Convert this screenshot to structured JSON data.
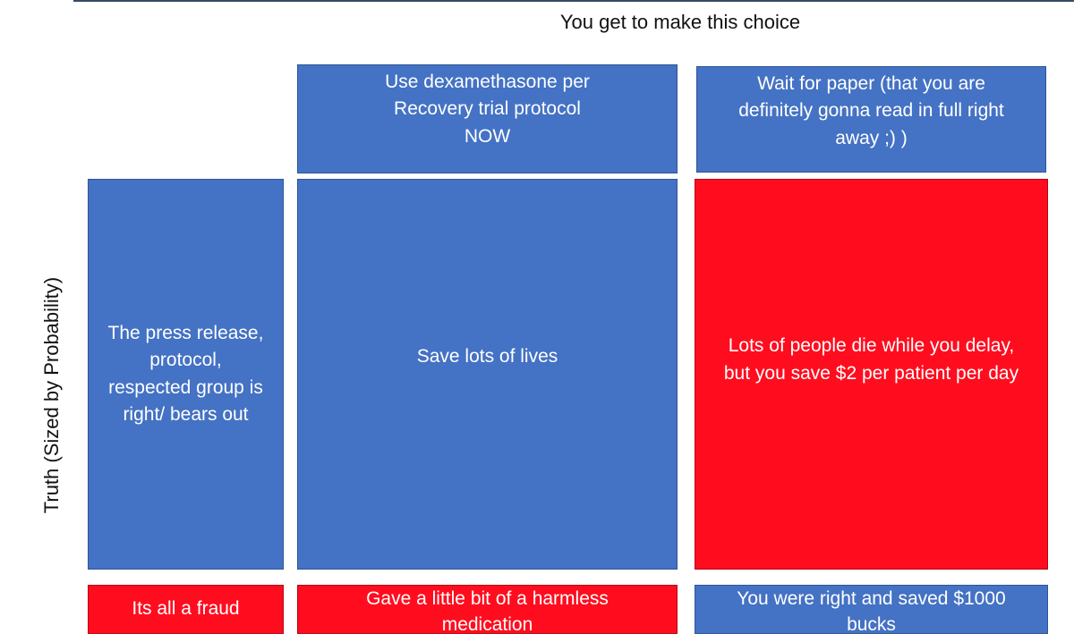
{
  "heading": "You get to make this choice",
  "axis_label": "Truth (Sized by Probability)",
  "choices": {
    "use_now": "Use dexamethasone per\nRecovery trial protocol\nNOW",
    "wait": "Wait for paper (that you are\ndefinitely gonna read in full right\naway ;) )"
  },
  "truths": {
    "right": "The press release,\nprotocol,\nrespected group is\nright/ bears out",
    "fraud": "Its all a fraud"
  },
  "outcomes": {
    "right_use_now": "Save lots of lives",
    "right_wait": "Lots of people die while you delay,\nbut you save $2 per patient per day",
    "fraud_use_now": "Gave a little bit of a harmless\nmedication",
    "fraud_wait": "You were right and saved $1000\nbucks"
  },
  "colors": {
    "blue": "#4472c4",
    "red": "#ff0d1f"
  }
}
